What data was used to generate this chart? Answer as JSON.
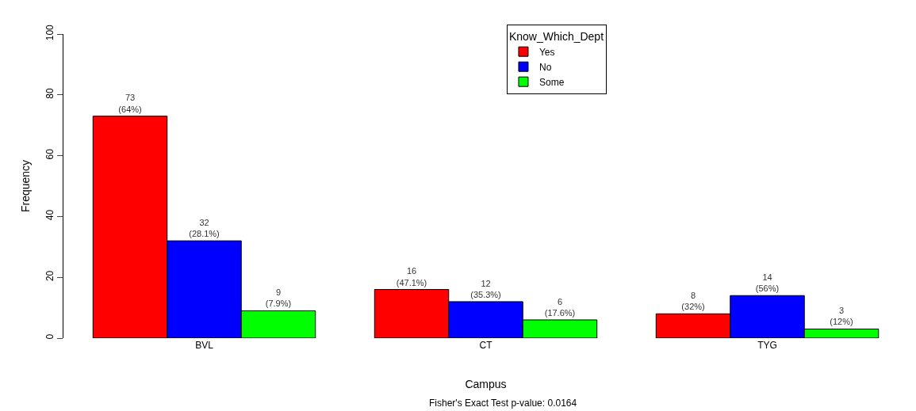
{
  "chart_data": {
    "type": "bar",
    "xlabel": "Campus",
    "ylabel": "Frequency",
    "legend_title": "Know_Which_Dept",
    "categories": [
      "BVL",
      "CT",
      "TYG"
    ],
    "series": [
      {
        "name": "Yes",
        "color": "#ff0000",
        "values": [
          73,
          16,
          8
        ],
        "value_labels": [
          "73\n(64%)",
          "16\n(47.1%)",
          "8\n(32%)"
        ]
      },
      {
        "name": "No",
        "color": "#0000ff",
        "values": [
          32,
          12,
          14
        ],
        "value_labels": [
          "32\n(28.1%)",
          "12\n(35.3%)",
          "14\n(56%)"
        ]
      },
      {
        "name": "Some",
        "color": "#00ff00",
        "values": [
          9,
          6,
          3
        ],
        "value_labels": [
          "9\n(7.9%)",
          "6\n(17.6%)",
          "3\n(12%)"
        ]
      }
    ],
    "ylim": [
      0,
      100
    ],
    "yticks": [
      0,
      20,
      40,
      60,
      80,
      100
    ],
    "legend": "top",
    "annotations": [
      "Fisher's Exact Test p-value: 0.0164"
    ]
  }
}
